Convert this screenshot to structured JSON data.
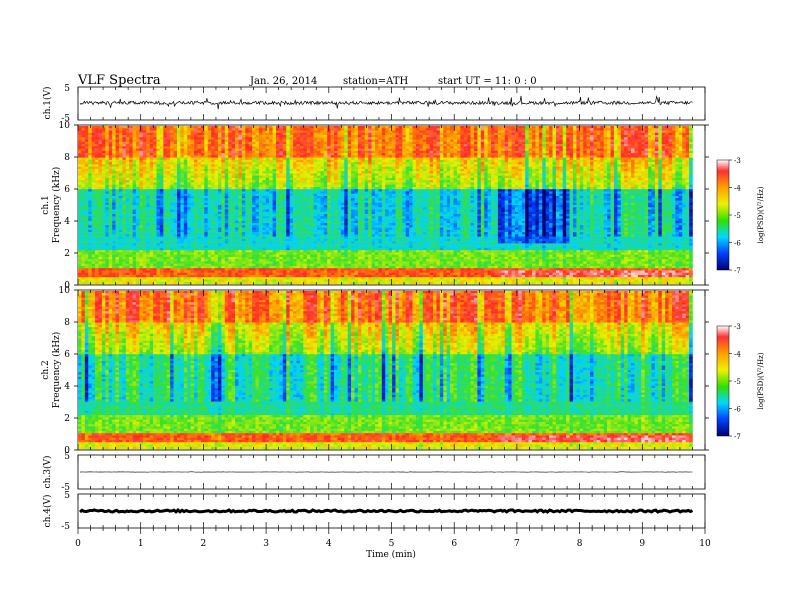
{
  "header": {
    "title": "VLF  Spectra",
    "date": "Jan. 26, 2014",
    "station": "station=ATH",
    "start": "start  UT  =   11: 0  : 0"
  },
  "chart_data": [
    {
      "type": "line",
      "panel": "ch1-waveform",
      "ylabel": "ch.1(V)",
      "ylim": [
        -5,
        5
      ],
      "yticks": [
        "5",
        "-5"
      ],
      "baseline": 0.2,
      "amplitude_typical": 0.5,
      "spike_amplitude_max": 1.8
    },
    {
      "type": "heatmap",
      "panel": "ch1-spectrogram",
      "ylabel_channel": "ch.1",
      "ylabel": "Frequency  (kHz)",
      "ylim": [
        0,
        10
      ],
      "yticks": [
        "0",
        "2",
        "4",
        "6",
        "8",
        "10"
      ],
      "colorbar_label": "log(PSD)(V²/Hz)",
      "colorbar_ticks": [
        "-3",
        "-4",
        "-5",
        "-6",
        "-7"
      ],
      "colorbar_range": [
        -7,
        -3
      ]
    },
    {
      "type": "heatmap",
      "panel": "ch2-spectrogram",
      "ylabel_channel": "ch.2",
      "ylabel": "Frequency  (kHz)",
      "ylim": [
        0,
        10
      ],
      "yticks": [
        "0",
        "2",
        "4",
        "6",
        "8",
        "10"
      ],
      "colorbar_label": "log(PSD)(V²/Hz)",
      "colorbar_ticks": [
        "-3",
        "-4",
        "-5",
        "-6",
        "-7"
      ],
      "colorbar_range": [
        -7,
        -3
      ]
    },
    {
      "type": "line",
      "panel": "ch3-waveform",
      "ylabel": "ch.3(V)",
      "ylim": [
        -5,
        5
      ],
      "yticks": [
        "5",
        "-5"
      ],
      "baseline": 0.0,
      "amplitude_typical": 0.05
    },
    {
      "type": "line",
      "panel": "ch4-waveform",
      "ylabel": "ch.4(V)",
      "ylim": [
        -5,
        5
      ],
      "yticks": [
        "5",
        "-5"
      ],
      "baseline": 0.0,
      "amplitude_typical": 0.3
    }
  ],
  "x_axis": {
    "label": "Time  (min)",
    "xlim": [
      0,
      10
    ],
    "data_end": 9.8,
    "ticks": [
      "0",
      "1",
      "2",
      "3",
      "4",
      "5",
      "6",
      "7",
      "8",
      "9",
      "10"
    ]
  }
}
